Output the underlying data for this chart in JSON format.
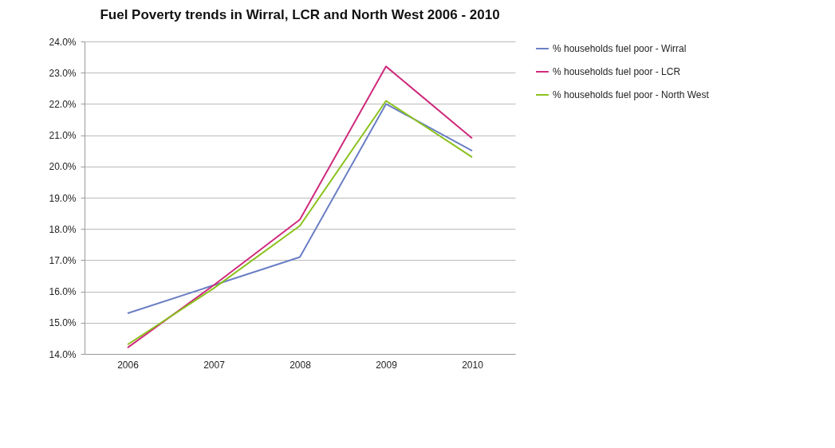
{
  "chart_data": {
    "type": "line",
    "title": "Fuel Poverty trends in Wirral, LCR and North West 2006 - 2010",
    "categories": [
      "2006",
      "2007",
      "2008",
      "2009",
      "2010"
    ],
    "series": [
      {
        "name": "% households fuel poor - Wirral",
        "color": "#6a7ec4",
        "values": [
          15.3,
          16.2,
          17.1,
          22.0,
          20.5
        ]
      },
      {
        "name": "% households fuel poor - LCR",
        "color": "#cf2a7c",
        "values": [
          14.2,
          16.2,
          18.3,
          23.2,
          20.9
        ]
      },
      {
        "name": "% households fuel poor - North West",
        "color": "#8ac11c",
        "values": [
          14.3,
          16.1,
          18.1,
          22.1,
          20.3
        ]
      }
    ],
    "ylim": [
      14,
      24
    ],
    "yticks": [
      {
        "value": 14,
        "label": "14.0%"
      },
      {
        "value": 15,
        "label": "15.0%"
      },
      {
        "value": 16,
        "label": "16.0%"
      },
      {
        "value": 17,
        "label": "17.0%"
      },
      {
        "value": 18,
        "label": "18.0%"
      },
      {
        "value": 19,
        "label": "19.0%"
      },
      {
        "value": 20,
        "label": "20.0%"
      },
      {
        "value": 21,
        "label": "21.0%"
      },
      {
        "value": 22,
        "label": "22.0%"
      },
      {
        "value": 23,
        "label": "23.0%"
      },
      {
        "value": 24,
        "label": "24.0%"
      }
    ],
    "grid": "y",
    "legend": "right",
    "marker": "none",
    "line_style": "solid"
  }
}
